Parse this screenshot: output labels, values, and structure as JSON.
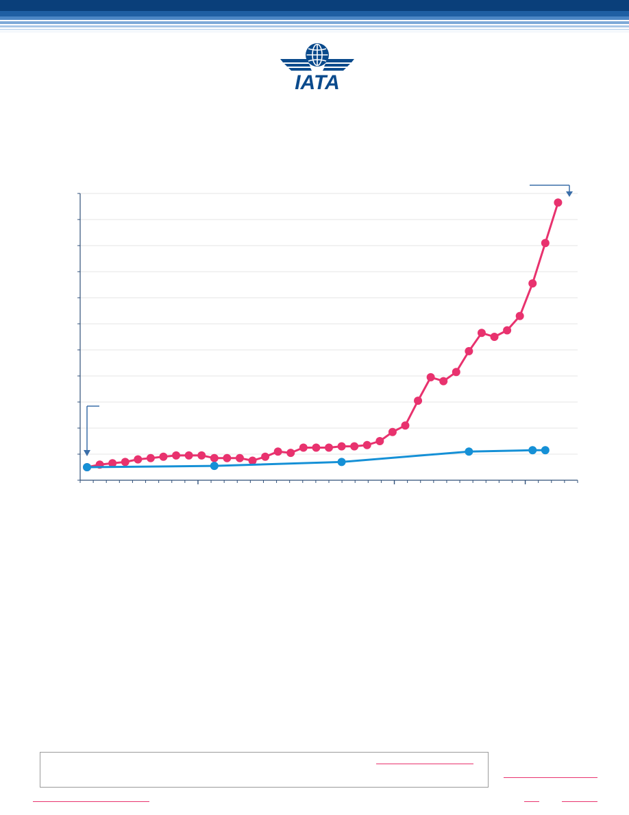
{
  "brand": {
    "logo_text": "IATA",
    "primary_color": "#0a4a8c",
    "accent_color": "#e8326e",
    "series2_color": "#1590d6"
  },
  "chart_data": {
    "type": "line",
    "xlim": [
      0,
      38
    ],
    "ylim": [
      0,
      11
    ],
    "grid": true,
    "series": [
      {
        "color": "#e8326e",
        "x": [
          0,
          1,
          2,
          3,
          4,
          5,
          6,
          7,
          8,
          9,
          10,
          11,
          12,
          13,
          14,
          15,
          16,
          17,
          18,
          19,
          20,
          21,
          22,
          23,
          24,
          25,
          26,
          27,
          28,
          29,
          30,
          31,
          32,
          33,
          34,
          35,
          36,
          37
        ],
        "y": [
          0.5,
          0.6,
          0.65,
          0.7,
          0.8,
          0.85,
          0.9,
          0.95,
          0.95,
          0.95,
          0.85,
          0.85,
          0.85,
          0.75,
          0.9,
          1.1,
          1.05,
          1.25,
          1.25,
          1.25,
          1.3,
          1.3,
          1.35,
          1.5,
          1.85,
          2.1,
          3.05,
          3.95,
          3.8,
          4.15,
          4.95,
          5.65,
          5.5,
          5.75,
          6.3,
          7.55,
          9.1,
          10.65
        ]
      },
      {
        "color": "#1590d6",
        "x": [
          0,
          10,
          20,
          30,
          35,
          36
        ],
        "y": [
          0.5,
          0.55,
          0.7,
          1.1,
          1.15,
          1.15
        ]
      }
    ]
  },
  "footer": {
    "notice_text": ""
  }
}
